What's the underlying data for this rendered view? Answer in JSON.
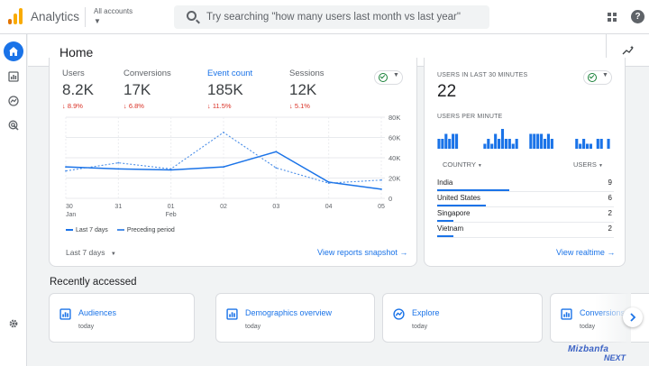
{
  "topbar": {
    "app_title": "Analytics",
    "account_selector": "All accounts",
    "search_placeholder": "Try searching \"how many users last month vs last year\"",
    "brand_colors": [
      "#f9ab00",
      "#e37400"
    ]
  },
  "header": {
    "title": "Home"
  },
  "metrics": [
    {
      "label": "Users",
      "value": "8.2K",
      "delta": "↓ 8.9%",
      "selected": false
    },
    {
      "label": "Conversions",
      "value": "17K",
      "delta": "↓ 6.8%",
      "selected": false
    },
    {
      "label": "Event count",
      "value": "185K",
      "delta": "↓ 11.5%",
      "selected": true
    },
    {
      "label": "Sessions",
      "value": "12K",
      "delta": "↓ 5.1%",
      "selected": false
    }
  ],
  "chart_data": {
    "type": "line",
    "x": [
      "30 Jan",
      "31",
      "01 Feb",
      "02",
      "03",
      "04",
      "05"
    ],
    "x_tick_labels": [
      {
        "day": "30",
        "month": "Jan"
      },
      {
        "day": "31",
        "month": ""
      },
      {
        "day": "01",
        "month": "Feb"
      },
      {
        "day": "02",
        "month": ""
      },
      {
        "day": "03",
        "month": ""
      },
      {
        "day": "04",
        "month": ""
      },
      {
        "day": "05",
        "month": ""
      }
    ],
    "y_ticks": [
      "80K",
      "60K",
      "40K",
      "20K",
      "0"
    ],
    "ylim": [
      0,
      80000
    ],
    "series": [
      {
        "name": "Last 7 days",
        "values": [
          31000,
          29000,
          28000,
          31000,
          46000,
          16000,
          9000
        ],
        "color": "#1a73e8",
        "style": "solid"
      },
      {
        "name": "Preceding period",
        "values": [
          27000,
          35000,
          29000,
          65000,
          30000,
          15000,
          18000
        ],
        "color": "#4c8fe8",
        "style": "dashed"
      }
    ],
    "grid": true,
    "legend_position": "bottom-left"
  },
  "metrics_card": {
    "date_range": "Last 7 days",
    "link": "View reports snapshot"
  },
  "realtime": {
    "title": "USERS IN LAST 30 MINUTES",
    "value": "22",
    "per_minute_label": "USERS PER MINUTE",
    "per_minute": [
      2,
      2,
      3,
      2,
      3,
      3,
      0,
      0,
      0,
      0,
      0,
      0,
      0,
      1,
      2,
      1,
      3,
      2,
      4,
      2,
      2,
      1,
      2,
      0,
      0,
      0,
      3,
      3,
      3,
      3,
      2,
      3,
      2,
      0,
      0,
      0,
      0,
      0,
      0,
      2,
      1,
      2,
      1,
      1,
      0,
      2,
      2,
      0,
      2
    ],
    "col_country": "COUNTRY",
    "col_users": "USERS",
    "rows": [
      {
        "name": "India",
        "value": "9",
        "share": 1.0
      },
      {
        "name": "United States",
        "value": "6",
        "share": 0.67
      },
      {
        "name": "Singapore",
        "value": "2",
        "share": 0.22
      },
      {
        "name": "Vietnam",
        "value": "2",
        "share": 0.22
      }
    ],
    "link": "View realtime"
  },
  "recently_accessed": {
    "title": "Recently accessed",
    "items": [
      {
        "title": "Audiences",
        "sub": "today",
        "icon": "bar-chart-icon"
      },
      {
        "title": "Demographics overview",
        "sub": "today",
        "icon": "bar-chart-icon"
      },
      {
        "title": "Explore",
        "sub": "today",
        "icon": "explore-icon"
      },
      {
        "title": "Conversions",
        "sub": "today",
        "icon": "bar-chart-icon"
      }
    ]
  },
  "watermark": {
    "line1": "Mizbanfa",
    "line2": "NEXT"
  }
}
